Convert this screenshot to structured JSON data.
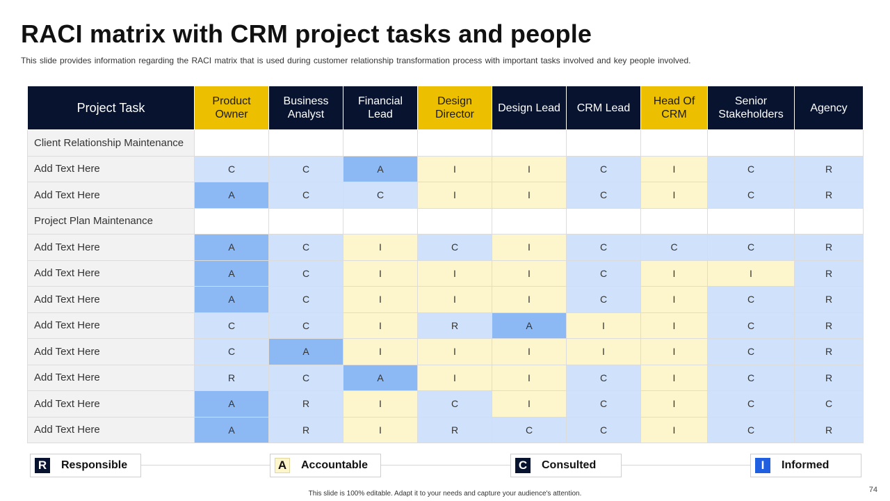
{
  "title": "RACI matrix with CRM project tasks and people",
  "subtitle": "This slide provides information regarding the RACI matrix that is used during customer relationship transformation process with important tasks involved and key people involved.",
  "table": {
    "task_header": "Project Task",
    "roles": [
      "Product Owner",
      "Business Analyst",
      "Financial Lead",
      "Design Director",
      "Design Lead",
      "CRM Lead",
      "Head Of CRM",
      "Senior Stakeholders",
      "Agency"
    ],
    "rows": [
      {
        "task": "Client Relationship Maintenance",
        "section": true,
        "values": []
      },
      {
        "task": "Add Text Here",
        "values": [
          "C",
          "C",
          "A",
          "I",
          "I",
          "C",
          "I",
          "C",
          "R"
        ],
        "fills": [
          "C",
          "C",
          "A",
          "I",
          "I",
          "C",
          "I",
          "C",
          "R"
        ]
      },
      {
        "task": "Add Text Here",
        "values": [
          "A",
          "C",
          "C",
          "I",
          "I",
          "C",
          "I",
          "C",
          "R"
        ],
        "fills": [
          "A",
          "C",
          "C",
          "I",
          "I",
          "C",
          "I",
          "C",
          "R"
        ]
      },
      {
        "task": "Project Plan Maintenance",
        "section": true,
        "values": []
      },
      {
        "task": "Add Text Here",
        "values": [
          "A",
          "C",
          "I",
          "C",
          "I",
          "C",
          "C",
          "C",
          "R"
        ],
        "fills": [
          "A",
          "C",
          "I",
          "C",
          "I",
          "C",
          "C",
          "C",
          "R"
        ]
      },
      {
        "task": "Add Text Here",
        "values": [
          "A",
          "C",
          "I",
          "I",
          "I",
          "C",
          "I",
          "I",
          "R"
        ],
        "fills": [
          "A",
          "C",
          "I",
          "I",
          "I",
          "C",
          "I",
          "I",
          "R"
        ]
      },
      {
        "task": "Add Text Here",
        "values": [
          "A",
          "C",
          "I",
          "I",
          "I",
          "C",
          "I",
          "C",
          "R"
        ],
        "fills": [
          "A",
          "C",
          "I",
          "I",
          "I",
          "C",
          "I",
          "C",
          "R"
        ]
      },
      {
        "task": "Add Text Here",
        "values": [
          "C",
          "C",
          "I",
          "R",
          "A",
          "I",
          "I",
          "C",
          "R"
        ],
        "fills": [
          "C",
          "C",
          "I",
          "R",
          "A",
          "I",
          "I",
          "C",
          "R"
        ]
      },
      {
        "task": "Add Text Here",
        "values": [
          "C",
          "A",
          "I",
          "I",
          "I",
          "I",
          "I",
          "C",
          "R"
        ],
        "fills": [
          "C",
          "A",
          "I",
          "I",
          "I",
          "I",
          "I",
          "C",
          "R"
        ]
      },
      {
        "task": "Add Text Here",
        "values": [
          "R",
          "C",
          "A",
          "I",
          "I",
          "C",
          "I",
          "C",
          "R"
        ],
        "fills": [
          "R",
          "C",
          "A",
          "I",
          "I",
          "C",
          "I",
          "C",
          "R"
        ]
      },
      {
        "task": "Add Text Here",
        "values": [
          "A",
          "R",
          "I",
          "C",
          "I",
          "C",
          "I",
          "C",
          "C"
        ],
        "fills": [
          "A",
          "R",
          "I",
          "C",
          "I",
          "C",
          "I",
          "C",
          "C"
        ]
      },
      {
        "task": "Add Text Here",
        "values": [
          "A",
          "R",
          "I",
          "R",
          "C",
          "C",
          "I",
          "C",
          "R"
        ],
        "fills": [
          "A",
          "R",
          "I",
          "R",
          "C",
          "C",
          "I",
          "C",
          "R"
        ]
      }
    ]
  },
  "legend": [
    {
      "letter": "R",
      "label": "Responsible"
    },
    {
      "letter": "A",
      "label": "Accountable"
    },
    {
      "letter": "C",
      "label": "Consulted"
    },
    {
      "letter": "I",
      "label": "Informed"
    }
  ],
  "footer": "This slide is 100% editable. Adapt it to your needs and capture your audience's attention.",
  "page_number": "74"
}
